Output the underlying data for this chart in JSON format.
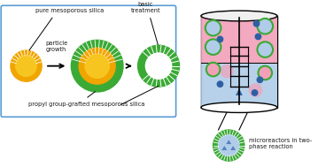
{
  "bg_color": "#ffffff",
  "box_color": "#5b9bd5",
  "yellow_core": "#f7c520",
  "yellow_mid": "#f0a500",
  "green_outer": "#3aaa35",
  "white": "#ffffff",
  "pink_color": "#f2a0b8",
  "blue_dot": "#2e5fa3",
  "light_blue": "#b0cce8",
  "blue_tri": "#5580c0",
  "text_color": "#1a1a1a",
  "label_silica": "pure mesoporous silica",
  "label_growth": "particle\ngrowth",
  "label_basic": "basic\ntreatment",
  "label_propyl": "propyl group-grafted mesoporous silica",
  "label_micro": "microreactors in two-\nphase reaction"
}
